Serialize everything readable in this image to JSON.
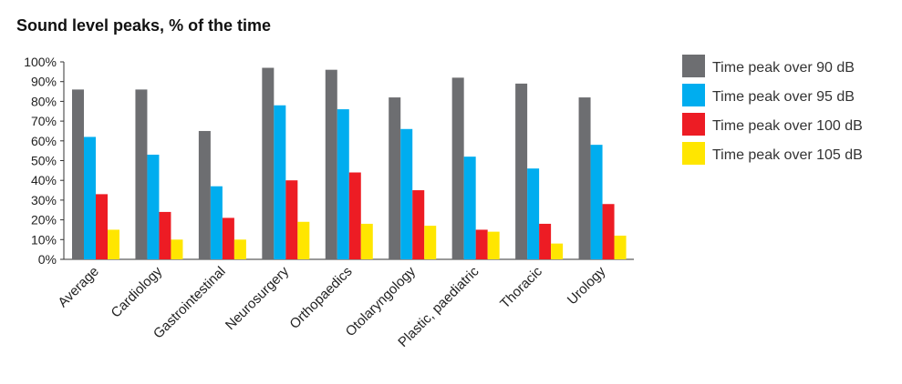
{
  "chart_data": {
    "type": "bar",
    "title": "Sound level peaks, % of the time",
    "xlabel": "",
    "ylabel": "",
    "ylim": [
      0,
      100
    ],
    "yticks": [
      "0%",
      "10%",
      "20%",
      "30%",
      "40%",
      "50%",
      "60%",
      "70%",
      "80%",
      "90%",
      "100%"
    ],
    "grid": false,
    "legend_position": "right",
    "categories": [
      "Average",
      "Cardiology",
      "Gastrointestinal",
      "Neurosurgery",
      "Orthopaedics",
      "Otolaryngology",
      "Plastic, paediatric",
      "Thoracic",
      "Urology"
    ],
    "series": [
      {
        "name": "Time peak over 90 dB",
        "color": "#6d6e71",
        "values": [
          86,
          86,
          65,
          97,
          96,
          82,
          92,
          89,
          82
        ]
      },
      {
        "name": "Time peak over 95 dB",
        "color": "#00adef",
        "values": [
          62,
          53,
          37,
          78,
          76,
          66,
          52,
          46,
          58
        ]
      },
      {
        "name": "Time peak over 100 dB",
        "color": "#ed1c24",
        "values": [
          33,
          24,
          21,
          40,
          44,
          35,
          15,
          18,
          28
        ]
      },
      {
        "name": "Time peak over 105 dB",
        "color": "#ffe600",
        "values": [
          15,
          10,
          10,
          19,
          18,
          17,
          14,
          8,
          12
        ]
      }
    ]
  }
}
